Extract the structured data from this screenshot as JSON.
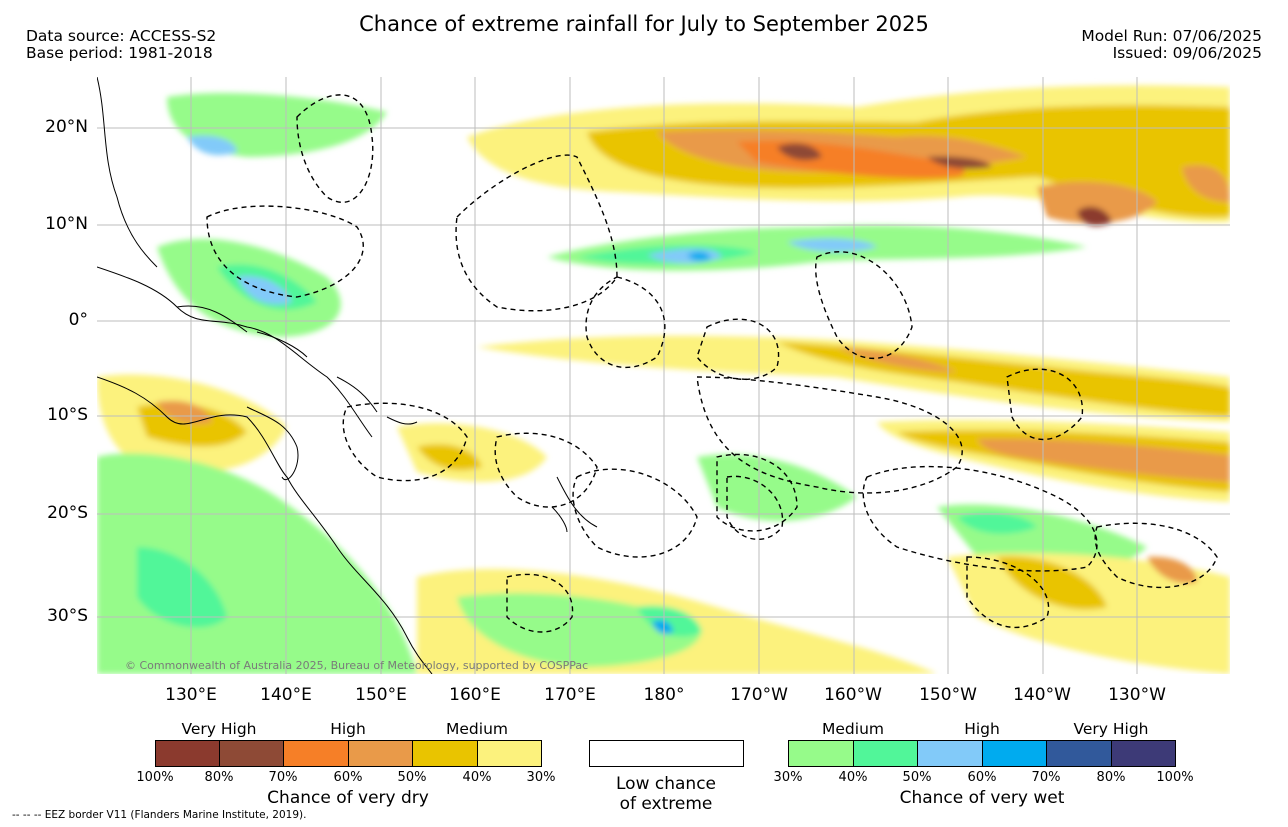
{
  "title": "Chance of extreme rainfall for July to September 2025",
  "meta_left": {
    "source": "Data source: ACCESS-S2",
    "base": "Base period: 1981-2018"
  },
  "meta_right": {
    "model_run": "Model Run: 07/06/2025",
    "issued": "Issued: 09/06/2025"
  },
  "lat_ticks": [
    "20°N",
    "10°N",
    "0°",
    "10°S",
    "20°S",
    "30°S"
  ],
  "lon_ticks": [
    "130°E",
    "140°E",
    "150°E",
    "160°E",
    "170°E",
    "180°",
    "170°W",
    "160°W",
    "150°W",
    "140°W",
    "130°W"
  ],
  "copyright": "© Commonwealth of Australia 2025, Bureau of Meteorology, supported by COSPPac",
  "dry_legend": {
    "headers": [
      "Very High",
      "High",
      "Medium"
    ],
    "ticks": [
      "100%",
      "80%",
      "70%",
      "60%",
      "50%",
      "40%",
      "30%"
    ],
    "colors": [
      "#8b3a2e",
      "#8e4a36",
      "#f67f27",
      "#e99a49",
      "#e9c400",
      "#fcf27d"
    ],
    "title": "Chance of very dry"
  },
  "low_legend": {
    "line1": "Low chance",
    "line2": "of extreme"
  },
  "wet_legend": {
    "headers": [
      "Medium",
      "High",
      "Very High"
    ],
    "ticks": [
      "30%",
      "40%",
      "50%",
      "60%",
      "70%",
      "80%",
      "100%"
    ],
    "colors": [
      "#96fb8a",
      "#51f699",
      "#82caf9",
      "#00abef",
      "#31599b",
      "#3d3a77"
    ],
    "title": "Chance of very wet"
  },
  "footnote": "--  --  -- EEZ border V11 (Flanders Marine Institute, 2019)."
}
